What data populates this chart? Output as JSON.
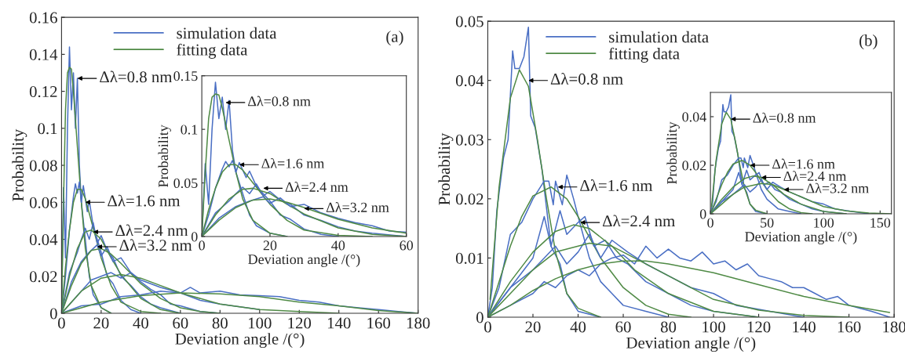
{
  "chart_data": [
    {
      "type": "line",
      "xlabel": "Deviation angle /(°)",
      "ylabel": "Probability",
      "xlim": [
        0,
        180
      ],
      "ylim": [
        0,
        0.16
      ],
      "xticks": [
        0,
        20,
        40,
        60,
        80,
        100,
        120,
        140,
        160,
        180
      ],
      "yticks": [
        0,
        0.02,
        0.04,
        0.06,
        0.08,
        0.1,
        0.12,
        0.14,
        0.16
      ],
      "grid": false,
      "legend": "top left",
      "annotations": [
        "(a)",
        {
          "text": "Δλ=0.8 nm",
          "x": 8,
          "y": 0.127
        },
        {
          "text": "Δλ=1.6 nm",
          "x": 12,
          "y": 0.06
        },
        {
          "text": "Δλ=2.4 nm",
          "x": 16,
          "y": 0.044
        },
        {
          "text": "Δλ=3.2 nm",
          "x": 18,
          "y": 0.036
        }
      ],
      "series": [
        {
          "name": "simulation data",
          "color": "#4a6fc4",
          "x": [
            0,
            1,
            2,
            3,
            4,
            5,
            6,
            7,
            8,
            9,
            10,
            12,
            14,
            16,
            20,
            25
          ],
          "values": [
            0,
            0.068,
            0.03,
            0.1,
            0.144,
            0.11,
            0.13,
            0.1,
            0.127,
            0.08,
            0.06,
            0.04,
            0.02,
            0.01,
            0.003,
            0
          ]
        },
        {
          "name": "fitting data",
          "color": "#4f8a45",
          "x": [
            0,
            1,
            2,
            3,
            4,
            5,
            6,
            8,
            10,
            12,
            15,
            20,
            25
          ],
          "values": [
            0,
            0.06,
            0.11,
            0.13,
            0.133,
            0.132,
            0.12,
            0.09,
            0.06,
            0.035,
            0.015,
            0.003,
            0
          ]
        },
        {
          "color": "#4a6fc4",
          "x": [
            0,
            2,
            4,
            6,
            7,
            8,
            9,
            10,
            11,
            13,
            14,
            16,
            18,
            20,
            23,
            26,
            30,
            35,
            40
          ],
          "values": [
            0,
            0.02,
            0.045,
            0.063,
            0.07,
            0.065,
            0.071,
            0.06,
            0.069,
            0.055,
            0.061,
            0.047,
            0.04,
            0.033,
            0.02,
            0.016,
            0.007,
            0.002,
            0
          ]
        },
        {
          "color": "#4f8a45",
          "x": [
            0,
            2,
            4,
            6,
            8,
            10,
            12,
            15,
            20,
            25,
            30,
            40,
            50
          ],
          "values": [
            0,
            0.025,
            0.045,
            0.06,
            0.067,
            0.067,
            0.062,
            0.05,
            0.03,
            0.015,
            0.006,
            0.001,
            0
          ]
        },
        {
          "color": "#4a6fc4",
          "x": [
            0,
            4,
            8,
            10,
            12,
            14,
            16,
            18,
            20,
            23,
            26,
            30,
            35,
            40,
            45,
            50,
            60
          ],
          "values": [
            0,
            0.022,
            0.033,
            0.04,
            0.046,
            0.04,
            0.049,
            0.038,
            0.042,
            0.034,
            0.03,
            0.02,
            0.015,
            0.009,
            0.005,
            0.003,
            0
          ]
        },
        {
          "color": "#4f8a45",
          "x": [
            0,
            4,
            8,
            12,
            15,
            20,
            25,
            30,
            40,
            50,
            60
          ],
          "values": [
            0,
            0.02,
            0.035,
            0.044,
            0.045,
            0.04,
            0.03,
            0.021,
            0.008,
            0.002,
            0
          ]
        },
        {
          "color": "#4a6fc4",
          "x": [
            0,
            5,
            10,
            14,
            18,
            20,
            23,
            26,
            30,
            35,
            40,
            45,
            50,
            55,
            60,
            70,
            80
          ],
          "values": [
            0,
            0.017,
            0.028,
            0.033,
            0.037,
            0.031,
            0.036,
            0.028,
            0.03,
            0.022,
            0.017,
            0.013,
            0.01,
            0.005,
            0.004,
            0.001,
            0
          ]
        },
        {
          "color": "#4f8a45",
          "x": [
            0,
            5,
            10,
            15,
            20,
            25,
            30,
            40,
            50,
            60,
            70,
            80
          ],
          "values": [
            0,
            0.015,
            0.027,
            0.034,
            0.035,
            0.032,
            0.027,
            0.016,
            0.008,
            0.003,
            0.001,
            0
          ]
        },
        {
          "color": "#4a6fc4",
          "x": [
            0,
            10,
            15,
            20,
            25,
            30,
            35,
            40,
            50,
            60,
            70,
            80,
            100
          ],
          "values": [
            0,
            0.012,
            0.018,
            0.02,
            0.022,
            0.019,
            0.022,
            0.018,
            0.014,
            0.011,
            0.007,
            0.005,
            0.002
          ]
        },
        {
          "color": "#4f8a45",
          "x": [
            0,
            10,
            20,
            30,
            40,
            50,
            60,
            80,
            100,
            120,
            140
          ],
          "values": [
            0,
            0.012,
            0.019,
            0.021,
            0.019,
            0.015,
            0.011,
            0.005,
            0.002,
            0.001,
            0
          ]
        },
        {
          "color": "#4a6fc4",
          "x": [
            0,
            10,
            20,
            30,
            40,
            50,
            60,
            65,
            70,
            80,
            90,
            100,
            110,
            120,
            130,
            140,
            150,
            160,
            170,
            180
          ],
          "values": [
            0,
            0.004,
            0.005,
            0.009,
            0.01,
            0.012,
            0.011,
            0.014,
            0.011,
            0.012,
            0.01,
            0.0095,
            0.009,
            0.007,
            0.006,
            0.004,
            0.003,
            0.002,
            0.001,
            0
          ]
        },
        {
          "color": "#4f8a45",
          "x": [
            0,
            10,
            20,
            40,
            60,
            80,
            100,
            120,
            140,
            160,
            180
          ],
          "values": [
            0,
            0.003,
            0.006,
            0.0095,
            0.011,
            0.0105,
            0.009,
            0.006,
            0.004,
            0.0015,
            0
          ]
        }
      ]
    },
    {
      "type": "line",
      "xlabel": "Deviation angle /(°)",
      "ylabel": "Probability",
      "xlim": [
        0,
        60
      ],
      "ylim": [
        0,
        0.15
      ],
      "xticks": [
        0,
        20,
        40,
        60
      ],
      "yticks": [
        0,
        0.05,
        0.1,
        0.15
      ],
      "grid": false,
      "annotations": [
        {
          "text": "Δλ=0.8 nm",
          "x": 7,
          "y": 0.125
        },
        {
          "text": "Δλ=1.6 nm",
          "x": 11,
          "y": 0.067
        },
        {
          "text": "Δλ=2.4 nm",
          "x": 18,
          "y": 0.045
        },
        {
          "text": "Δλ=3.2 nm",
          "x": 30,
          "y": 0.026
        }
      ],
      "series": [
        {
          "color": "#4a6fc4",
          "x": [
            0,
            1,
            2,
            3,
            4,
            5,
            6,
            7,
            8,
            9,
            10,
            12,
            14,
            16,
            20,
            25
          ],
          "values": [
            0,
            0.068,
            0.03,
            0.1,
            0.144,
            0.11,
            0.13,
            0.1,
            0.127,
            0.08,
            0.06,
            0.04,
            0.02,
            0.01,
            0.003,
            0
          ]
        },
        {
          "color": "#4f8a45",
          "x": [
            0,
            1,
            2,
            3,
            4,
            5,
            6,
            8,
            10,
            12,
            15,
            20,
            25
          ],
          "values": [
            0,
            0.06,
            0.11,
            0.13,
            0.133,
            0.132,
            0.12,
            0.09,
            0.06,
            0.035,
            0.015,
            0.003,
            0
          ]
        },
        {
          "color": "#4a6fc4",
          "x": [
            0,
            2,
            4,
            6,
            7,
            8,
            9,
            10,
            11,
            13,
            14,
            16,
            18,
            20,
            23,
            26,
            30,
            35,
            40
          ],
          "values": [
            0,
            0.02,
            0.045,
            0.063,
            0.07,
            0.065,
            0.071,
            0.06,
            0.069,
            0.055,
            0.061,
            0.047,
            0.04,
            0.033,
            0.02,
            0.016,
            0.007,
            0.002,
            0
          ]
        },
        {
          "color": "#4f8a45",
          "x": [
            0,
            2,
            4,
            6,
            8,
            10,
            12,
            15,
            20,
            25,
            30,
            40,
            50
          ],
          "values": [
            0,
            0.025,
            0.045,
            0.06,
            0.067,
            0.067,
            0.062,
            0.05,
            0.03,
            0.015,
            0.006,
            0.001,
            0
          ]
        },
        {
          "color": "#4a6fc4",
          "x": [
            0,
            4,
            8,
            10,
            12,
            14,
            16,
            18,
            20,
            23,
            26,
            30,
            35,
            40,
            45,
            50,
            60
          ],
          "values": [
            0,
            0.022,
            0.033,
            0.04,
            0.046,
            0.04,
            0.049,
            0.038,
            0.042,
            0.034,
            0.03,
            0.02,
            0.015,
            0.009,
            0.005,
            0.003,
            0
          ]
        },
        {
          "color": "#4f8a45",
          "x": [
            0,
            4,
            8,
            12,
            15,
            20,
            25,
            30,
            40,
            50,
            60
          ],
          "values": [
            0,
            0.02,
            0.035,
            0.044,
            0.045,
            0.04,
            0.03,
            0.021,
            0.008,
            0.002,
            0
          ]
        },
        {
          "color": "#4a6fc4",
          "x": [
            0,
            5,
            10,
            14,
            18,
            20,
            23,
            26,
            30,
            35,
            40,
            45,
            50,
            55,
            60
          ],
          "values": [
            0,
            0.017,
            0.028,
            0.033,
            0.037,
            0.031,
            0.036,
            0.028,
            0.03,
            0.022,
            0.017,
            0.013,
            0.01,
            0.005,
            0.004
          ]
        },
        {
          "color": "#4f8a45",
          "x": [
            0,
            5,
            10,
            15,
            20,
            25,
            30,
            40,
            50,
            60
          ],
          "values": [
            0,
            0.015,
            0.027,
            0.034,
            0.035,
            0.032,
            0.027,
            0.016,
            0.008,
            0.003
          ]
        }
      ]
    },
    {
      "type": "line",
      "xlabel": "Deviation angle /(°)",
      "ylabel": "Probability",
      "xlim": [
        0,
        180
      ],
      "ylim": [
        0,
        0.05
      ],
      "xticks": [
        0,
        20,
        40,
        60,
        80,
        100,
        120,
        140,
        160,
        180
      ],
      "yticks": [
        0,
        0.01,
        0.02,
        0.03,
        0.04,
        0.05
      ],
      "grid": false,
      "legend": "top left",
      "annotations": [
        "(b)",
        {
          "text": "Δλ=0.8 nm",
          "x": 18,
          "y": 0.04
        },
        {
          "text": "Δλ=1.6 nm",
          "x": 31,
          "y": 0.022
        },
        {
          "text": "Δλ=2.4 nm",
          "x": 41,
          "y": 0.016
        }
      ],
      "series": [
        {
          "name": "simulation data",
          "color": "#4a6fc4",
          "x": [
            0,
            2,
            4,
            7,
            9,
            11,
            12,
            14,
            16,
            18,
            19,
            21,
            24,
            28,
            32,
            35,
            40,
            50
          ],
          "values": [
            0,
            0.005,
            0.018,
            0.027,
            0.03,
            0.045,
            0.042,
            0.042,
            0.044,
            0.049,
            0.034,
            0.032,
            0.025,
            0.012,
            0.009,
            0.004,
            0.001,
            0
          ]
        },
        {
          "name": "fitting data",
          "color": "#4f8a45",
          "x": [
            1,
            5,
            10,
            14,
            18,
            22,
            26,
            30,
            35,
            40,
            50
          ],
          "values": [
            0.003,
            0.022,
            0.037,
            0.0418,
            0.039,
            0.03,
            0.02,
            0.011,
            0.004,
            0.0015,
            0
          ]
        },
        {
          "color": "#4a6fc4",
          "x": [
            0,
            5,
            10,
            15,
            20,
            25,
            27,
            29,
            30,
            33,
            35,
            38,
            40,
            45,
            50,
            55,
            60,
            70,
            80
          ],
          "values": [
            0,
            0.005,
            0.014,
            0.016,
            0.02,
            0.023,
            0.023,
            0.019,
            0.023,
            0.019,
            0.024,
            0.02,
            0.017,
            0.01,
            0.006,
            0.004,
            0.002,
            0.001,
            0
          ]
        },
        {
          "color": "#4f8a45",
          "x": [
            0,
            5,
            10,
            15,
            20,
            28,
            35,
            40,
            50,
            60,
            70,
            80,
            90
          ],
          "values": [
            0,
            0.006,
            0.012,
            0.017,
            0.0205,
            0.022,
            0.02,
            0.017,
            0.01,
            0.005,
            0.002,
            0.0005,
            0
          ]
        },
        {
          "color": "#4a6fc4",
          "x": [
            0,
            10,
            20,
            25,
            28,
            32,
            35,
            40,
            43,
            47,
            52,
            57,
            62,
            70,
            80,
            90,
            100,
            120
          ],
          "values": [
            0,
            0.005,
            0.01,
            0.017,
            0.012,
            0.018,
            0.014,
            0.016,
            0.017,
            0.012,
            0.013,
            0.01,
            0.009,
            0.006,
            0.004,
            0.002,
            0.001,
            0
          ]
        },
        {
          "color": "#4f8a45",
          "x": [
            0,
            10,
            20,
            30,
            38,
            45,
            55,
            65,
            80,
            100,
            120
          ],
          "values": [
            0,
            0.006,
            0.011,
            0.0145,
            0.0156,
            0.015,
            0.012,
            0.008,
            0.004,
            0.001,
            0
          ]
        },
        {
          "color": "#4a6fc4",
          "x": [
            0,
            10,
            20,
            25,
            30,
            35,
            40,
            45,
            50,
            55,
            62,
            70,
            80,
            90,
            100,
            110,
            125,
            140
          ],
          "values": [
            0,
            0.005,
            0.008,
            0.01,
            0.012,
            0.009,
            0.011,
            0.014,
            0.01,
            0.013,
            0.011,
            0.009,
            0.007,
            0.005,
            0.004,
            0.002,
            0.001,
            0
          ]
        },
        {
          "color": "#4f8a45",
          "x": [
            0,
            10,
            20,
            30,
            45,
            55,
            65,
            80,
            100,
            120,
            140,
            160
          ],
          "values": [
            0,
            0.004,
            0.008,
            0.011,
            0.0125,
            0.012,
            0.01,
            0.007,
            0.003,
            0.0012,
            0.0003,
            0
          ]
        },
        {
          "color": "#4a6fc4",
          "x": [
            0,
            10,
            20,
            25,
            30,
            35,
            40,
            45,
            50,
            55,
            60,
            65,
            70,
            75,
            80,
            85,
            90,
            95,
            100,
            105,
            110,
            115,
            120,
            125,
            130,
            135,
            140,
            145,
            150,
            155,
            160,
            165,
            170,
            178
          ],
          "values": [
            0,
            0.002,
            0.004,
            0.006,
            0.005,
            0.007,
            0.008,
            0.007,
            0.009,
            0.01,
            0.0105,
            0.009,
            0.012,
            0.01,
            0.0115,
            0.01,
            0.0095,
            0.011,
            0.009,
            0.0095,
            0.008,
            0.009,
            0.007,
            0.0065,
            0.006,
            0.005,
            0.005,
            0.004,
            0.003,
            0.0035,
            0.002,
            0.0015,
            0.001,
            0
          ]
        },
        {
          "color": "#4f8a45",
          "x": [
            0,
            10,
            20,
            30,
            40,
            50,
            60,
            70,
            80,
            100,
            120,
            140,
            160,
            178
          ],
          "values": [
            0,
            0.002,
            0.0045,
            0.0065,
            0.008,
            0.009,
            0.0095,
            0.0095,
            0.009,
            0.0075,
            0.0055,
            0.0035,
            0.002,
            0.0008
          ]
        }
      ]
    },
    {
      "type": "line",
      "xlabel": "Deviation angle /(°)",
      "ylabel": "Probability",
      "xlim": [
        0,
        160
      ],
      "ylim": [
        0,
        0.05
      ],
      "xticks": [
        0,
        50,
        100,
        150
      ],
      "yticks": [
        0,
        0.02,
        0.04
      ],
      "grid": false,
      "annotations": [
        {
          "text": "Δλ=0.8 nm",
          "x": 18,
          "y": 0.039
        },
        {
          "text": "Δλ=1.6 nm",
          "x": 35,
          "y": 0.02
        },
        {
          "text": "Δλ=2.4 nm",
          "x": 45,
          "y": 0.015
        },
        {
          "text": "Δλ=3.2 nm",
          "x": 65,
          "y": 0.01
        }
      ],
      "series": [
        {
          "color": "#4a6fc4",
          "x": [
            0,
            2,
            4,
            7,
            9,
            11,
            12,
            14,
            16,
            18,
            19,
            21,
            24,
            28,
            32,
            35,
            40,
            50
          ],
          "values": [
            0,
            0.005,
            0.018,
            0.027,
            0.03,
            0.045,
            0.042,
            0.042,
            0.044,
            0.049,
            0.034,
            0.032,
            0.025,
            0.012,
            0.009,
            0.004,
            0.001,
            0
          ]
        },
        {
          "color": "#4f8a45",
          "x": [
            1,
            5,
            10,
            14,
            18,
            22,
            26,
            30,
            35,
            40,
            50
          ],
          "values": [
            0.003,
            0.022,
            0.037,
            0.0418,
            0.039,
            0.03,
            0.02,
            0.011,
            0.004,
            0.0015,
            0
          ]
        },
        {
          "color": "#4a6fc4",
          "x": [
            0,
            5,
            10,
            15,
            20,
            25,
            27,
            29,
            30,
            33,
            35,
            38,
            40,
            45,
            50,
            55,
            60,
            70,
            80
          ],
          "values": [
            0,
            0.005,
            0.014,
            0.016,
            0.02,
            0.023,
            0.023,
            0.019,
            0.023,
            0.019,
            0.024,
            0.02,
            0.017,
            0.01,
            0.006,
            0.004,
            0.002,
            0.001,
            0
          ]
        },
        {
          "color": "#4f8a45",
          "x": [
            0,
            5,
            10,
            15,
            20,
            28,
            35,
            40,
            50,
            60,
            70,
            80,
            90
          ],
          "values": [
            0,
            0.006,
            0.012,
            0.017,
            0.0205,
            0.022,
            0.02,
            0.017,
            0.01,
            0.005,
            0.002,
            0.0005,
            0
          ]
        },
        {
          "color": "#4a6fc4",
          "x": [
            0,
            10,
            20,
            25,
            28,
            32,
            35,
            40,
            43,
            47,
            52,
            57,
            62,
            70,
            80,
            90,
            100,
            120
          ],
          "values": [
            0,
            0.005,
            0.01,
            0.017,
            0.012,
            0.018,
            0.014,
            0.016,
            0.017,
            0.012,
            0.013,
            0.01,
            0.009,
            0.006,
            0.004,
            0.002,
            0.001,
            0
          ]
        },
        {
          "color": "#4f8a45",
          "x": [
            0,
            10,
            20,
            30,
            38,
            45,
            55,
            65,
            80,
            100,
            120
          ],
          "values": [
            0,
            0.006,
            0.011,
            0.0145,
            0.0156,
            0.015,
            0.012,
            0.008,
            0.004,
            0.001,
            0
          ]
        },
        {
          "color": "#4a6fc4",
          "x": [
            0,
            10,
            20,
            25,
            30,
            35,
            40,
            45,
            50,
            55,
            62,
            70,
            80,
            90,
            100,
            110,
            125,
            140
          ],
          "values": [
            0,
            0.005,
            0.008,
            0.01,
            0.012,
            0.009,
            0.011,
            0.014,
            0.01,
            0.013,
            0.011,
            0.009,
            0.007,
            0.005,
            0.004,
            0.002,
            0.001,
            0
          ]
        },
        {
          "color": "#4f8a45",
          "x": [
            0,
            10,
            20,
            30,
            45,
            55,
            65,
            80,
            100,
            120,
            140,
            160
          ],
          "values": [
            0,
            0.004,
            0.008,
            0.011,
            0.0125,
            0.012,
            0.01,
            0.007,
            0.003,
            0.0012,
            0.0003,
            0
          ]
        }
      ]
    }
  ]
}
